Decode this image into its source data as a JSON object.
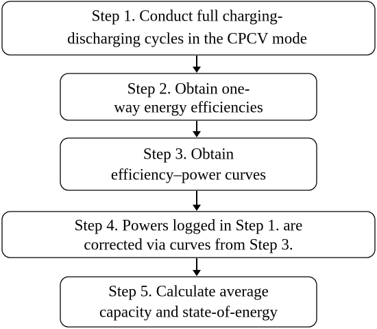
{
  "nodes": [
    {
      "lines": [
        "Step 1. Conduct full charging-",
        "discharging cycles in the CPCV mode"
      ]
    },
    {
      "lines": [
        "Step 2. Obtain one-",
        "way energy efficiencies"
      ]
    },
    {
      "lines": [
        "Step 3. Obtain",
        "efficiency–power curves"
      ]
    },
    {
      "lines": [
        "Step 4. Powers logged in Step 1. are",
        "corrected via curves from Step 3."
      ]
    },
    {
      "lines": [
        "Step 5. Calculate average",
        "capacity and state-of-energy"
      ]
    }
  ]
}
